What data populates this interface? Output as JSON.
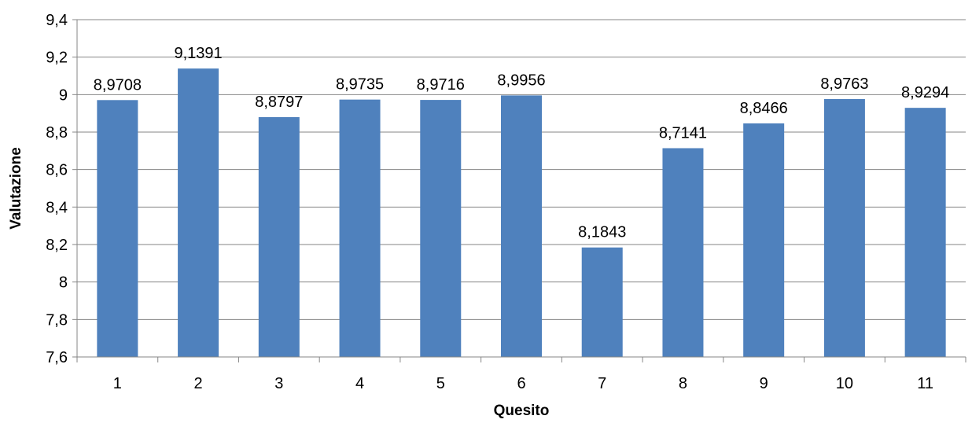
{
  "chart_data": {
    "type": "bar",
    "xlabel": "Quesito",
    "ylabel": "Valutazione",
    "ylim": [
      7.6,
      9.4
    ],
    "yticks": [
      7.6,
      7.8,
      8,
      8.2,
      8.4,
      8.6,
      8.8,
      9,
      9.2,
      9.4
    ],
    "ytick_labels": [
      "7,6",
      "7,8",
      "8",
      "8,2",
      "8,4",
      "8,6",
      "8,8",
      "9",
      "9,2",
      "9,4"
    ],
    "categories": [
      "1",
      "2",
      "3",
      "4",
      "5",
      "6",
      "7",
      "8",
      "9",
      "10",
      "11"
    ],
    "values": [
      8.9708,
      9.1391,
      8.8797,
      8.9735,
      8.9716,
      8.9956,
      8.1843,
      8.7141,
      8.8466,
      8.9763,
      8.9294
    ],
    "data_labels": [
      "8,9708",
      "9,1391",
      "8,8797",
      "8,9735",
      "8,9716",
      "8,9956",
      "8,1843",
      "8,7141",
      "8,8466",
      "8,9763",
      "8,9294"
    ],
    "grid": true,
    "legend": "none",
    "colors": {
      "bar": "#4F81BD",
      "grid": "#868686",
      "axis": "#868686"
    }
  }
}
